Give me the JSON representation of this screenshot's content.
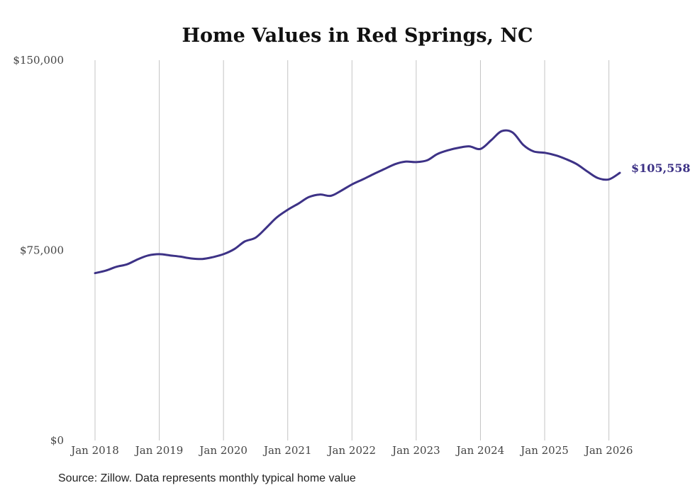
{
  "chart_data": {
    "type": "line",
    "title": "Home Values in Red Springs, NC",
    "xlabel": "",
    "ylabel": "",
    "ylim": [
      0,
      150000
    ],
    "y_ticks": [
      {
        "value": 0,
        "label": "$0"
      },
      {
        "value": 75000,
        "label": "$75,000"
      },
      {
        "value": 150000,
        "label": "$150,000"
      }
    ],
    "x_ticks": [
      {
        "value": 2018,
        "label": "Jan 2018"
      },
      {
        "value": 2019,
        "label": "Jan 2019"
      },
      {
        "value": 2020,
        "label": "Jan 2020"
      },
      {
        "value": 2021,
        "label": "Jan 2021"
      },
      {
        "value": 2022,
        "label": "Jan 2022"
      },
      {
        "value": 2023,
        "label": "Jan 2023"
      },
      {
        "value": 2024,
        "label": "Jan 2024"
      },
      {
        "value": 2025,
        "label": "Jan 2025"
      },
      {
        "value": 2026,
        "label": "Jan 2026"
      }
    ],
    "xlim": [
      2018,
      2026.17
    ],
    "grid": "vertical",
    "line_color": "#3d3286",
    "series": [
      {
        "name": "Typical home value",
        "x": [
          2018.0,
          2018.17,
          2018.33,
          2018.5,
          2018.67,
          2018.83,
          2019.0,
          2019.17,
          2019.33,
          2019.5,
          2019.67,
          2019.83,
          2020.0,
          2020.17,
          2020.33,
          2020.5,
          2020.67,
          2020.83,
          2021.0,
          2021.17,
          2021.33,
          2021.5,
          2021.67,
          2021.83,
          2022.0,
          2022.17,
          2022.33,
          2022.5,
          2022.67,
          2022.83,
          2023.0,
          2023.17,
          2023.33,
          2023.5,
          2023.67,
          2023.83,
          2024.0,
          2024.17,
          2024.33,
          2024.5,
          2024.67,
          2024.83,
          2025.0,
          2025.17,
          2025.33,
          2025.5,
          2025.67,
          2025.83,
          2026.0,
          2026.17
        ],
        "values": [
          66000,
          67000,
          68500,
          69500,
          71500,
          73000,
          73500,
          73000,
          72500,
          71800,
          71600,
          72300,
          73500,
          75500,
          78500,
          80000,
          84000,
          88000,
          91000,
          93500,
          96000,
          97000,
          96500,
          98500,
          101000,
          103000,
          105000,
          107000,
          109000,
          110000,
          109800,
          110500,
          113000,
          114500,
          115500,
          116000,
          115000,
          118500,
          122000,
          121500,
          116500,
          114000,
          113500,
          112500,
          111000,
          109000,
          106000,
          103500,
          103000,
          105558
        ]
      }
    ],
    "end_label": "$105,558",
    "source": "Source: Zillow. Data represents monthly typical home value"
  }
}
